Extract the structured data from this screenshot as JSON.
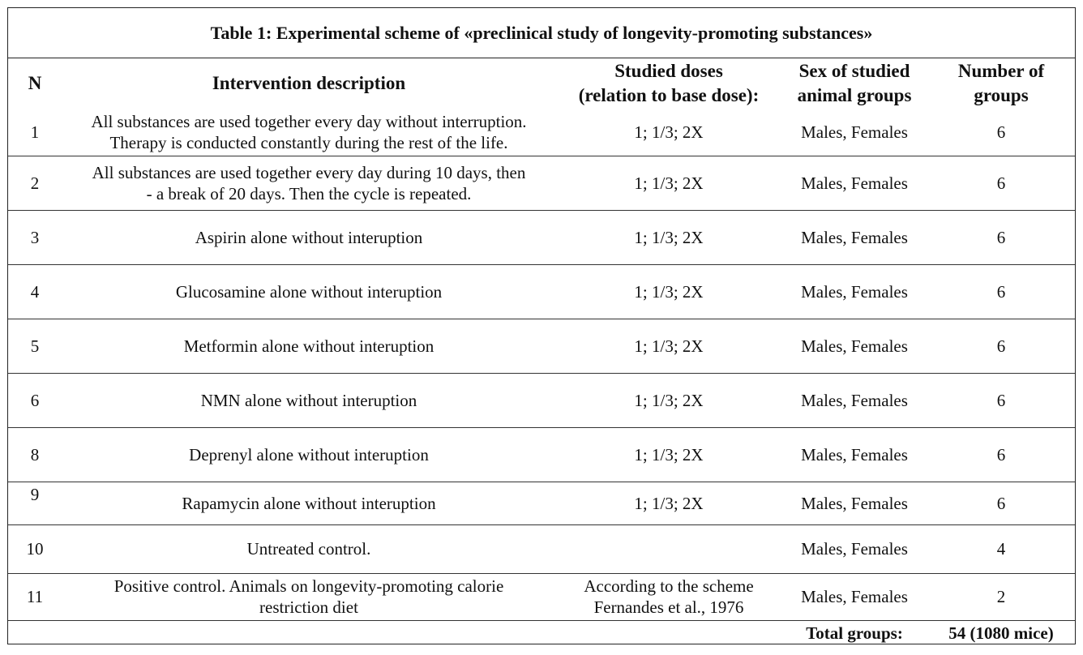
{
  "title": "Table 1: Experimental scheme of «preclinical study of longevity-promoting substances»",
  "headers": {
    "n": "N",
    "intervention": "Intervention description",
    "doses": "Studied doses\n(relation to base dose):",
    "sex": "Sex of studied\nanimal groups",
    "groups": "Number of\ngroups"
  },
  "rows": [
    {
      "n": "1",
      "intervention": "All substances are used together every day without interruption.\nTherapy is conducted constantly during the rest of the life.",
      "doses": "1; 1/3; 2X",
      "sex": "Males, Females",
      "groups": "6"
    },
    {
      "n": "2",
      "intervention": "All substances are used together every day during 10 days, then\n- a break of 20 days. Then the cycle is repeated.",
      "doses": "1; 1/3; 2X",
      "sex": "Males, Females",
      "groups": "6"
    },
    {
      "n": "3",
      "intervention": "Aspirin alone without interuption",
      "doses": "1; 1/3; 2X",
      "sex": "Males, Females",
      "groups": "6"
    },
    {
      "n": "4",
      "intervention": "Glucosamine alone  without interuption",
      "doses": "1; 1/3; 2X",
      "sex": "Males, Females",
      "groups": "6"
    },
    {
      "n": "5",
      "intervention": "Metformin alone  without interuption",
      "doses": "1; 1/3; 2X",
      "sex": "Males, Females",
      "groups": "6"
    },
    {
      "n": "6",
      "intervention": "NMN alone  without interuption",
      "doses": "1; 1/3; 2X",
      "sex": "Males, Females",
      "groups": "6"
    },
    {
      "n": "8",
      "intervention": "Deprenyl alone  without interuption",
      "doses": "1; 1/3; 2X",
      "sex": "Males, Females",
      "groups": "6"
    },
    {
      "n": "9",
      "intervention": "Rapamycin alone  without interuption",
      "doses": "1; 1/3; 2X",
      "sex": "Males, Females",
      "groups": "6"
    },
    {
      "n": "10",
      "intervention": "Untreated control.",
      "doses": "",
      "sex": "Males, Females",
      "groups": "4"
    },
    {
      "n": "11",
      "intervention": "Positive control. Animals on longevity-promoting calorie\nrestriction diet",
      "doses": "According to the scheme\nFernandes et al., 1976",
      "sex": "Males, Females",
      "groups": "2"
    }
  ],
  "total": {
    "label": "Total groups:",
    "value": "54 (1080 mice)"
  }
}
